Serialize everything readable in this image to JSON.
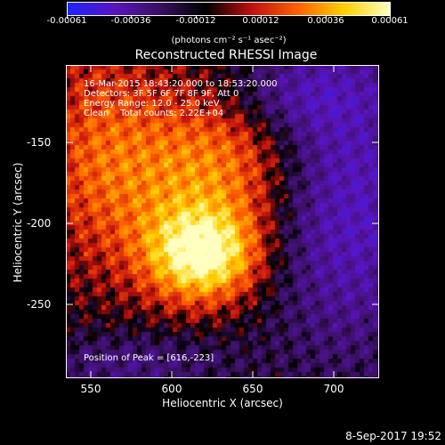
{
  "colorbar": {
    "ticks": [
      "-0.00061",
      "-0.00036",
      "-0.00012",
      "0.00012",
      "0.00036",
      "0.00061"
    ],
    "unit": "(photons cm⁻² s⁻¹ asec⁻²)",
    "colors": [
      "#1c24ff",
      "#5a14c0",
      "#3a1060",
      "#000000",
      "#c01010",
      "#ff6000",
      "#ffd000",
      "#ffffc0"
    ]
  },
  "title": "Reconstructed RHESSI Image",
  "info": {
    "line1": "16-Mar-2015 18:43:20.000 to 18:53:20.000",
    "line2": "Detectors: 3F 5F 6F 7F 8F 9F, Att 0",
    "line3": "Energy Range: 12.0 - 25.0 keV",
    "line4": "Clean    Total counts: 2.22E+04",
    "peak": "Position of Peak = [616,-223]"
  },
  "axes": {
    "xlabel": "Heliocentric X (arcsec)",
    "ylabel": "Heliocentric Y (arcsec)",
    "xticks": [
      "550",
      "600",
      "650",
      "700"
    ],
    "yticks": [
      "-150",
      "-200",
      "-250"
    ]
  },
  "footer": {
    "date": "8-Sep-2017 19:52"
  }
}
